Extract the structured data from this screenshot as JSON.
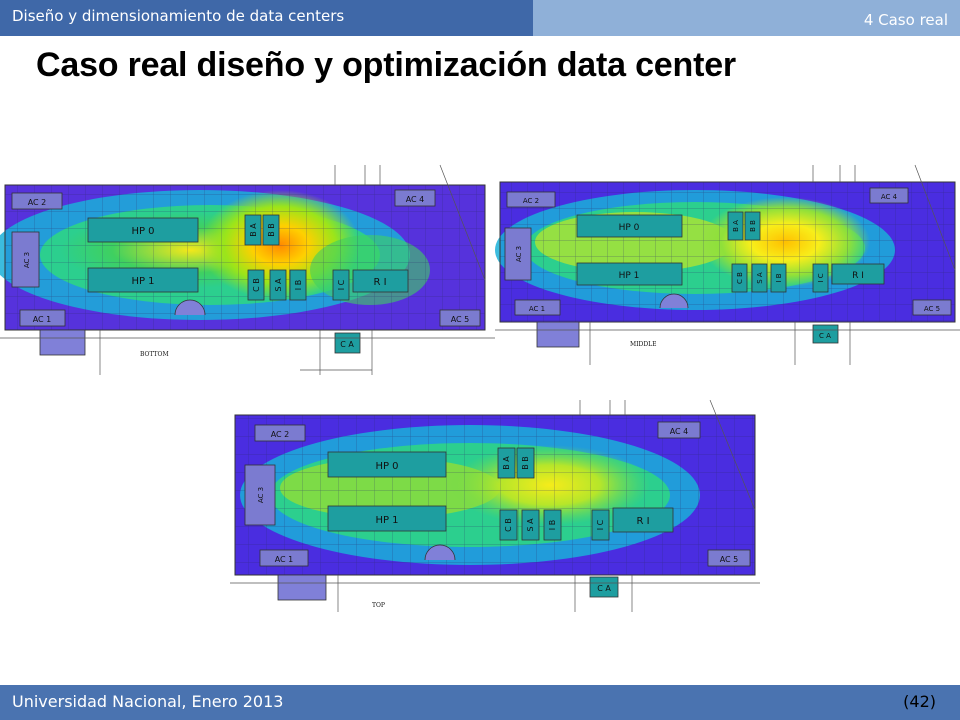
{
  "header": {
    "title": "Diseño y dimensionamiento de data centers",
    "section": "4 Caso real"
  },
  "slide": {
    "title": "Caso real diseño y optimización data center"
  },
  "footer": {
    "institution": "Universidad Nacional, Enero 2013",
    "page": "(42)"
  },
  "heatmaps": [
    {
      "caption": "BOTTOM"
    },
    {
      "caption": "MIDDLE"
    },
    {
      "caption": "TOP"
    }
  ],
  "floor_labels": {
    "ac2": "AC 2",
    "ac4": "AC 4",
    "ac1": "AC 1",
    "ac5": "AC 5",
    "ac3": "AC 3",
    "hp0": "HP 0",
    "hp1": "HP 1",
    "ba": "B A",
    "bb": "B B",
    "cb": "C B",
    "sa": "S A",
    "ib": "I B",
    "ic": "I C",
    "ri": "R I",
    "ca": "C A"
  },
  "colors": {
    "header_dark": "#3f68a8",
    "header_light": "#8fb0d8",
    "footer": "#4a73b0",
    "rack": "#1e9ea0"
  }
}
